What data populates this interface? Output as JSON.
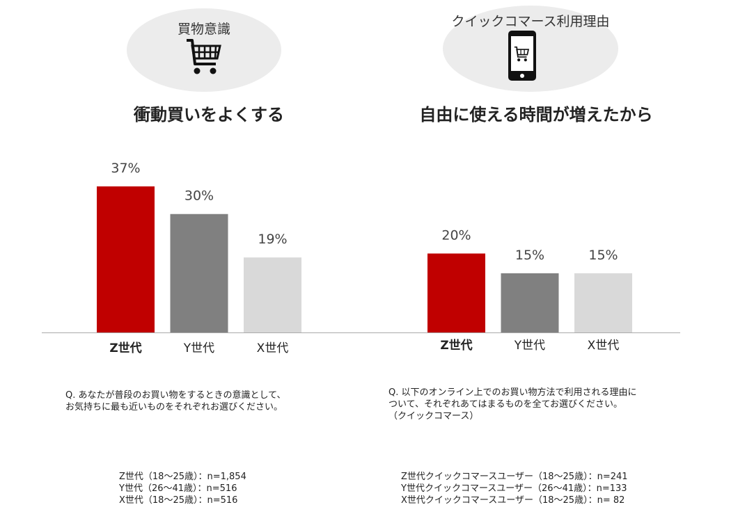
{
  "panels": {
    "left": {
      "icon_label": "買物意識",
      "icon": "shopping-cart-icon",
      "headline": "衝動買いをよくする",
      "question": "Q. あなたが普段のお買い物をするときの意識として、\nお気持ちに最も近いものをそれぞれお選びください。",
      "sample": "Z世代（18～25歳）：n=1,854\nY世代（26～41歳）：n=516\nX世代（18～25歳）：n=516"
    },
    "right": {
      "icon_label": "クイックコマース利用理由",
      "icon": "smartphone-cart-icon",
      "headline": "自由に使える時間が増えたから",
      "question": "Q. 以下のオンライン上でのお買い物方法で利用される理由に\nついて、それぞれあてはまるものを全てお選びください。\n（クイックコマース）",
      "sample": "Z世代クイックコマースユーザー（18～25歳）：n=241\nY世代クイックコマースユーザー（26～41歳）：n=133\nX世代クイックコマースユーザー（18～25歳）：n=  82"
    }
  },
  "chart_data": [
    {
      "type": "bar",
      "title": "衝動買いをよくする",
      "categories": [
        "Z世代",
        "Y世代",
        "X世代"
      ],
      "values": [
        37,
        30,
        19
      ],
      "value_labels": [
        "37%",
        "30%",
        "19%"
      ],
      "colors": [
        "#c00000",
        "#808080",
        "#d9d9d9"
      ],
      "ylim": [
        0,
        40
      ],
      "grid": false
    },
    {
      "type": "bar",
      "title": "自由に使える時間が増えたから",
      "categories": [
        "Z世代",
        "Y世代",
        "X世代"
      ],
      "values": [
        20,
        15,
        15
      ],
      "value_labels": [
        "20%",
        "15%",
        "15%"
      ],
      "colors": [
        "#c00000",
        "#808080",
        "#d9d9d9"
      ],
      "ylim": [
        0,
        40
      ],
      "grid": false
    }
  ]
}
